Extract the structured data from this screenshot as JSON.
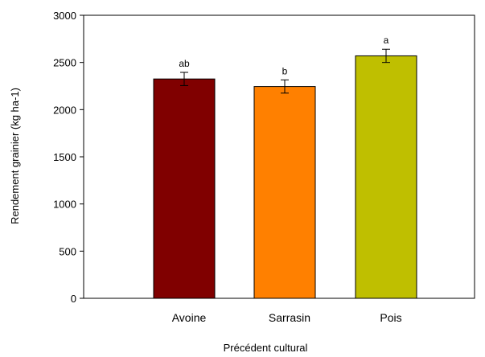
{
  "chart_data": {
    "type": "bar",
    "title": "",
    "xlabel": "Précédent cultural",
    "ylabel": "Rendement grainier (kg ha-1)",
    "ylim": [
      0,
      3000
    ],
    "yticks": [
      0,
      500,
      1000,
      1500,
      2000,
      2500,
      3000
    ],
    "grid": false,
    "legend": "none",
    "categories": [
      "Avoine",
      "Sarrasin",
      "Pois"
    ],
    "values": [
      2325,
      2245,
      2570
    ],
    "errors": [
      70,
      70,
      70
    ],
    "annotations": [
      "ab",
      "b",
      "a"
    ],
    "colors": [
      "#800000",
      "#ff8000",
      "#bfbf00"
    ]
  }
}
